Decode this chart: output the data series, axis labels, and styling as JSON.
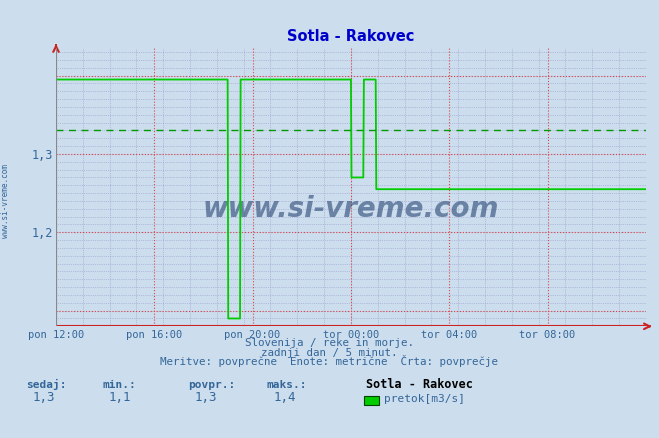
{
  "title": "Sotla - Rakovec",
  "title_color": "#0000cc",
  "bg_color": "#ccdded",
  "plot_bg_color": "#ccdded",
  "line_color": "#00cc00",
  "avg_line_color": "#009900",
  "avg_value": 1.33,
  "ylim": [
    1.08,
    1.435
  ],
  "major_yticks": [
    1.1,
    1.2,
    1.3,
    1.4
  ],
  "ytick_labels": [
    "",
    "1,2",
    "1,3",
    ""
  ],
  "tick_color": "#336699",
  "ylabel_text": "www.si-vreme.com",
  "grid_major_color": "#dd4444",
  "grid_minor_color": "#9999cc",
  "axis_color": "#cc2222",
  "footer_line1": "Slovenija / reke in morje.",
  "footer_line2": "zadnji dan / 5 minut.",
  "footer_line3": "Meritve: povprečne  Enote: metrične  Črta: povprečje",
  "footer_color": "#336699",
  "stats_labels": [
    "sedaj:",
    "min.:",
    "povpr.:",
    "maks.:"
  ],
  "stats_values": [
    "1,3",
    "1,1",
    "1,3",
    "1,4"
  ],
  "stats_color": "#336699",
  "legend_station": "Sotla - Rakovec",
  "legend_label": "pretok[m3/s]",
  "legend_color": "#00cc00",
  "xtick_labels": [
    "pon 12:00",
    "pon 16:00",
    "pon 20:00",
    "tor 00:00",
    "tor 04:00",
    "tor 08:00"
  ],
  "watermark_text": "www.si-vreme.com",
  "watermark_color": "#1a3a6a",
  "data_x": [
    0.0,
    0.291,
    0.292,
    0.312,
    0.313,
    0.5,
    0.501,
    0.521,
    0.522,
    0.542,
    0.543,
    1.0
  ],
  "data_y": [
    1.395,
    1.395,
    1.09,
    1.09,
    1.395,
    1.395,
    1.27,
    1.27,
    1.395,
    1.395,
    1.255,
    1.255
  ]
}
